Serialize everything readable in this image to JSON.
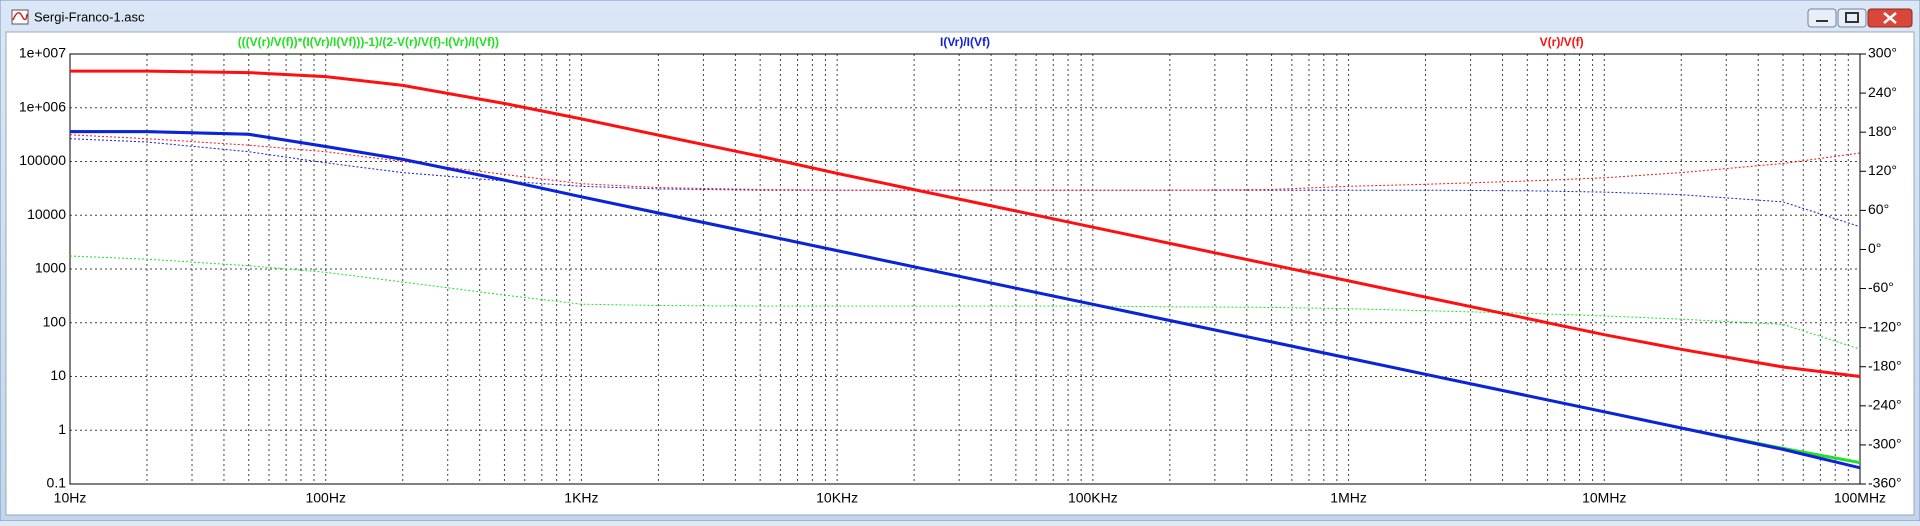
{
  "window_title": "Sergi-Franco-1.asc",
  "chart_data": {
    "type": "line",
    "log_x": true,
    "log_y": true,
    "grid": true,
    "minor_grid": true,
    "x": [
      10,
      20,
      50,
      100,
      200,
      500,
      1000,
      2000,
      5000,
      10000,
      20000,
      50000,
      100000,
      200000,
      500000,
      1000000,
      2000000,
      5000000,
      10000000,
      20000000,
      50000000,
      100000000
    ],
    "xlim": [
      10,
      100000000
    ],
    "xticks": [
      {
        "value": 10,
        "label": "10Hz"
      },
      {
        "value": 100,
        "label": "100Hz"
      },
      {
        "value": 1000,
        "label": "1KHz"
      },
      {
        "value": 10000,
        "label": "10KHz"
      },
      {
        "value": 100000,
        "label": "100KHz"
      },
      {
        "value": 1000000,
        "label": "1MHz"
      },
      {
        "value": 10000000,
        "label": "10MHz"
      },
      {
        "value": 100000000,
        "label": "100MHz"
      }
    ],
    "ylim": [
      0.1,
      10000000
    ],
    "yticks": [
      {
        "value": 10000000,
        "label": "1e+007"
      },
      {
        "value": 1000000,
        "label": "1e+006"
      },
      100000,
      10000,
      1000,
      100,
      10,
      1,
      0.1
    ],
    "y2lim": [
      -360,
      300
    ],
    "y2ticks": [
      {
        "value": 300,
        "label": "300°"
      },
      {
        "value": 240,
        "label": "240°"
      },
      {
        "value": 180,
        "label": "180°"
      },
      {
        "value": 120,
        "label": "120°"
      },
      {
        "value": 60,
        "label": "60°"
      },
      {
        "value": 0,
        "label": "0°"
      },
      {
        "value": -60,
        "label": "-60°"
      },
      {
        "value": -120,
        "label": "-120°"
      },
      {
        "value": -180,
        "label": "-180°"
      },
      {
        "value": -240,
        "label": "-240°"
      },
      {
        "value": -300,
        "label": "-300°"
      },
      {
        "value": -360,
        "label": "-360°"
      }
    ],
    "series": [
      {
        "name": "(((V(r)/V(f))*(I(Vr)/I(Vf)))-1)/(2-V(r)/V(f)-I(Vr)/I(Vf))",
        "color": "#22e022",
        "values": [
          360000,
          360000,
          320000,
          190000,
          110000,
          45000,
          22000,
          11000,
          4400,
          2200,
          1100,
          440,
          220,
          110,
          44,
          22,
          11,
          4.4,
          2.2,
          1.1,
          0.46,
          0.25
        ],
        "phase": [
          -10,
          -15,
          -25,
          -35,
          -50,
          -70,
          -84,
          -86,
          -87,
          -87,
          -87,
          -87,
          -87,
          -88,
          -89,
          -91,
          -94,
          -98,
          -102,
          -107,
          -115,
          -153
        ]
      },
      {
        "name": "I(Vr)/I(Vf)",
        "color": "#1020e0",
        "values": [
          360000,
          360000,
          320000,
          190000,
          110000,
          45000,
          22000,
          11000,
          4400,
          2200,
          1100,
          440,
          220,
          110,
          44,
          22,
          11,
          4.4,
          2.2,
          1.1,
          0.44,
          0.2
        ],
        "phase": [
          170,
          165,
          150,
          133,
          118,
          105,
          97,
          93,
          91,
          91,
          91,
          91,
          91,
          91,
          91,
          91,
          91,
          90,
          88,
          84,
          73,
          35
        ]
      },
      {
        "name": "V(r)/V(f)",
        "color": "#ff1010",
        "values": [
          4800000,
          4800000,
          4500000,
          3800000,
          2600000,
          1200000,
          620000,
          310000,
          125000,
          60000,
          30000,
          12000,
          6000,
          3000,
          1200,
          600,
          300,
          120,
          60,
          32,
          15,
          10
        ],
        "phase": [
          176,
          170,
          160,
          150,
          135,
          115,
          101,
          95,
          92,
          91,
          91,
          91,
          91,
          91,
          92,
          97,
          100,
          105,
          110,
          118,
          132,
          148
        ]
      }
    ]
  }
}
